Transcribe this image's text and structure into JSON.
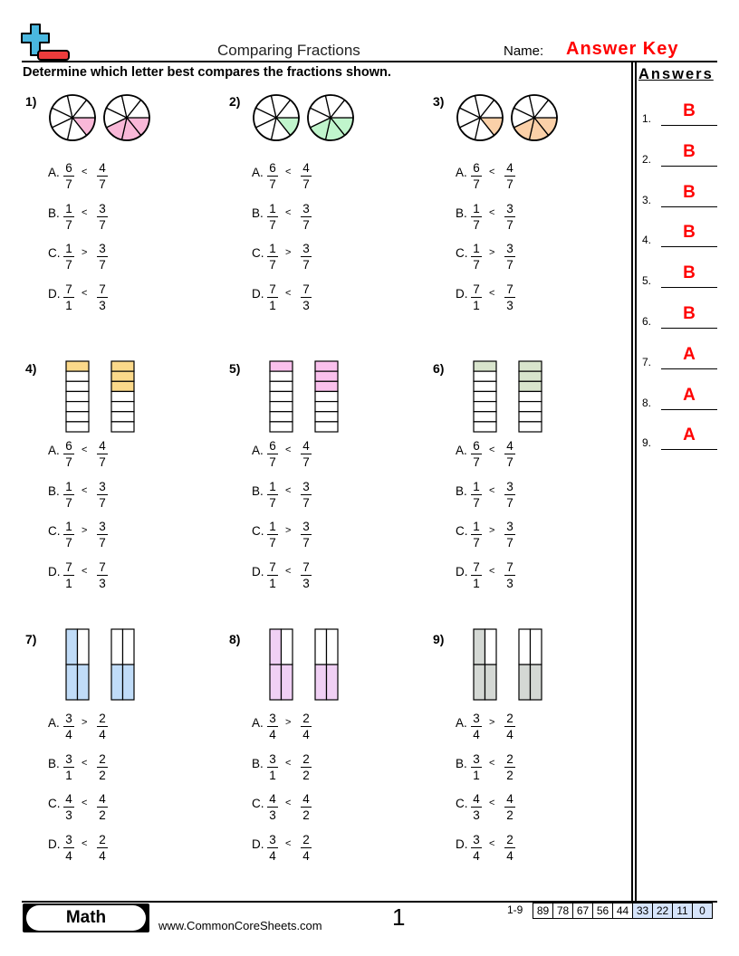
{
  "header": {
    "title": "Comparing Fractions",
    "name_label": "Name:",
    "name_value": "Answer Key",
    "logo": "plus-minus-logo",
    "instructions": "Determine which letter best compares the fractions shown."
  },
  "colors": {
    "answer": "#ff0000",
    "score_highlight": "#d6e4fb"
  },
  "problems": [
    {
      "num": "1)",
      "type": "pie",
      "color": "#f9b8d8",
      "left": [
        1,
        7
      ],
      "right": [
        3,
        7
      ]
    },
    {
      "num": "2)",
      "type": "pie",
      "color": "#c0f5cc",
      "left": [
        1,
        7
      ],
      "right": [
        3,
        7
      ]
    },
    {
      "num": "3)",
      "type": "pie",
      "color": "#fbd0a8",
      "left": [
        1,
        7
      ],
      "right": [
        3,
        7
      ]
    },
    {
      "num": "4)",
      "type": "strip",
      "color": "#fbd98a",
      "left": [
        1,
        7
      ],
      "right": [
        3,
        7
      ]
    },
    {
      "num": "5)",
      "type": "strip",
      "color": "#f9c0ec",
      "left": [
        1,
        7
      ],
      "right": [
        3,
        7
      ]
    },
    {
      "num": "6)",
      "type": "strip",
      "color": "#d8e4cc",
      "left": [
        1,
        7
      ],
      "right": [
        3,
        7
      ]
    },
    {
      "num": "7)",
      "type": "grid",
      "color": "#c0dcf8",
      "left": [
        3,
        4
      ],
      "right": [
        2,
        4
      ]
    },
    {
      "num": "8)",
      "type": "grid",
      "color": "#f0d0f4",
      "left": [
        3,
        4
      ],
      "right": [
        2,
        4
      ]
    },
    {
      "num": "9)",
      "type": "grid",
      "color": "#d4d8d4",
      "left": [
        3,
        4
      ],
      "right": [
        2,
        4
      ]
    }
  ],
  "option_sets": [
    [
      {
        "letter": "A.",
        "a": [
          "6",
          "7"
        ],
        "sym": "<",
        "b": [
          "4",
          "7"
        ]
      },
      {
        "letter": "B.",
        "a": [
          "1",
          "7"
        ],
        "sym": "<",
        "b": [
          "3",
          "7"
        ]
      },
      {
        "letter": "C.",
        "a": [
          "1",
          "7"
        ],
        "sym": ">",
        "b": [
          "3",
          "7"
        ]
      },
      {
        "letter": "D.",
        "a": [
          "7",
          "1"
        ],
        "sym": "<",
        "b": [
          "7",
          "3"
        ]
      }
    ],
    [
      {
        "letter": "A.",
        "a": [
          "3",
          "4"
        ],
        "sym": ">",
        "b": [
          "2",
          "4"
        ]
      },
      {
        "letter": "B.",
        "a": [
          "3",
          "1"
        ],
        "sym": "<",
        "b": [
          "2",
          "2"
        ]
      },
      {
        "letter": "C.",
        "a": [
          "4",
          "3"
        ],
        "sym": "<",
        "b": [
          "4",
          "2"
        ]
      },
      {
        "letter": "D.",
        "a": [
          "3",
          "4"
        ],
        "sym": "<",
        "b": [
          "2",
          "4"
        ]
      }
    ]
  ],
  "answers": {
    "title": "Answers",
    "items": [
      {
        "n": "1.",
        "v": "B"
      },
      {
        "n": "2.",
        "v": "B"
      },
      {
        "n": "3.",
        "v": "B"
      },
      {
        "n": "4.",
        "v": "B"
      },
      {
        "n": "5.",
        "v": "B"
      },
      {
        "n": "6.",
        "v": "B"
      },
      {
        "n": "7.",
        "v": "A"
      },
      {
        "n": "8.",
        "v": "A"
      },
      {
        "n": "9.",
        "v": "A"
      }
    ]
  },
  "footer": {
    "subject": "Math",
    "site": "www.CommonCoreSheets.com",
    "page": "1",
    "score_label": "1-9",
    "scores": [
      "89",
      "78",
      "67",
      "56",
      "44",
      "33",
      "22",
      "11",
      "0"
    ]
  }
}
